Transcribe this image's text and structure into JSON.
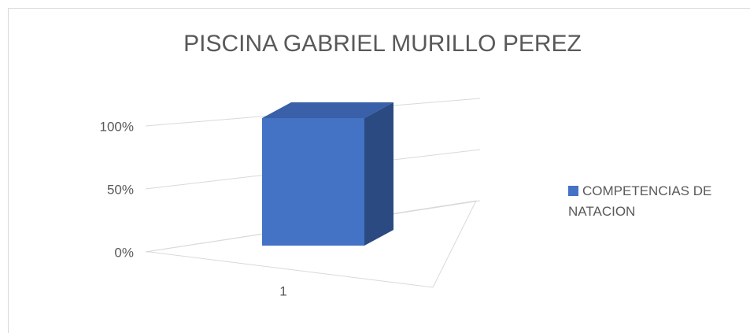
{
  "chart_data": {
    "type": "bar3d",
    "title": "PISCINA GABRIEL MURILLO PEREZ",
    "categories": [
      "1"
    ],
    "series": [
      {
        "name": "COMPETENCIAS DE NATACION",
        "color": "#4472c4",
        "values": [
          100
        ]
      }
    ],
    "ylim": [
      0,
      100
    ],
    "yticks": [
      {
        "value": 0,
        "label": "0%"
      },
      {
        "value": 50,
        "label": "50%"
      },
      {
        "value": 100,
        "label": "100%"
      }
    ],
    "grid": true,
    "legend": "right"
  }
}
